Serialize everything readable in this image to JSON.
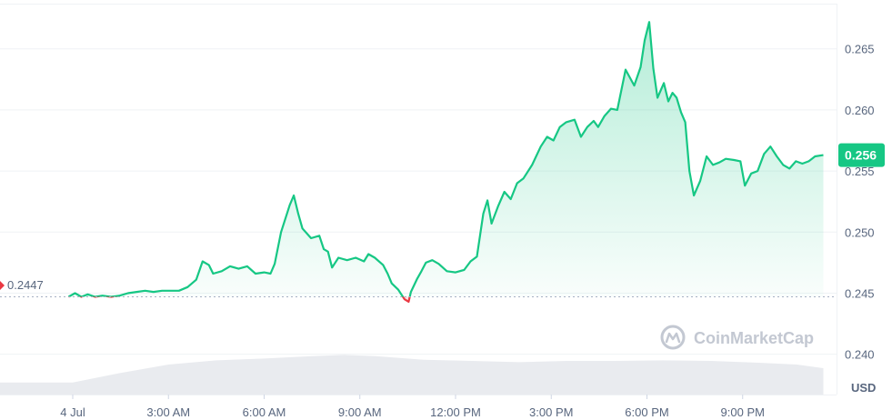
{
  "chart_data": {
    "type": "area",
    "currency_label": "USD",
    "watermark": "CoinMarketCap",
    "open_value_label": "0.2447",
    "current_value_label": "0.256",
    "open_value": 0.2447,
    "ylim": [
      0.2367,
      0.269
    ],
    "xlim": [
      0,
      24
    ],
    "yticks": [
      {
        "value": 0.265,
        "label": "0.265"
      },
      {
        "value": 0.26,
        "label": "0.260"
      },
      {
        "value": 0.255,
        "label": "0.255"
      },
      {
        "value": 0.25,
        "label": "0.250"
      },
      {
        "value": 0.245,
        "label": "0.245"
      },
      {
        "value": 0.24,
        "label": "0.240"
      }
    ],
    "xticks": [
      {
        "value": 0.0,
        "label": "4 Jul"
      },
      {
        "value": 3.0,
        "label": "3:00 AM"
      },
      {
        "value": 6.0,
        "label": "6:00 AM"
      },
      {
        "value": 9.0,
        "label": "9:00 AM"
      },
      {
        "value": 12.0,
        "label": "12:00 PM"
      },
      {
        "value": 15.0,
        "label": "3:00 PM"
      },
      {
        "value": 18.0,
        "label": "6:00 PM"
      },
      {
        "value": 21.0,
        "label": "9:00 PM"
      }
    ],
    "colors": {
      "up": "#16c784",
      "down": "#ea3943",
      "grid": "#eff2f5",
      "baseline": "#a6b0c3",
      "volume": "#e3e6eb"
    },
    "series": [
      {
        "values": [
          [
            -0.13,
            0.2447
          ],
          [
            0.07,
            0.245
          ],
          [
            0.27,
            0.2447
          ],
          [
            0.47,
            0.2449
          ],
          [
            0.7,
            0.2447
          ],
          [
            0.93,
            0.2448
          ],
          [
            1.2,
            0.2447
          ],
          [
            1.47,
            0.2448
          ],
          [
            1.73,
            0.245
          ],
          [
            2.0,
            0.2451
          ],
          [
            2.27,
            0.2452
          ],
          [
            2.53,
            0.2451
          ],
          [
            2.8,
            0.2452
          ],
          [
            3.07,
            0.2452
          ],
          [
            3.33,
            0.2452
          ],
          [
            3.6,
            0.2455
          ],
          [
            3.87,
            0.2461
          ],
          [
            4.07,
            0.2476
          ],
          [
            4.27,
            0.2473
          ],
          [
            4.4,
            0.2466
          ],
          [
            4.67,
            0.2468
          ],
          [
            4.93,
            0.2472
          ],
          [
            5.2,
            0.247
          ],
          [
            5.47,
            0.2472
          ],
          [
            5.73,
            0.2466
          ],
          [
            6.0,
            0.2467
          ],
          [
            6.2,
            0.2466
          ],
          [
            6.33,
            0.2474
          ],
          [
            6.53,
            0.25
          ],
          [
            6.8,
            0.2522
          ],
          [
            6.93,
            0.253
          ],
          [
            7.07,
            0.2515
          ],
          [
            7.2,
            0.2503
          ],
          [
            7.47,
            0.2495
          ],
          [
            7.73,
            0.2497
          ],
          [
            7.87,
            0.2486
          ],
          [
            8.0,
            0.2484
          ],
          [
            8.13,
            0.2471
          ],
          [
            8.33,
            0.2479
          ],
          [
            8.6,
            0.2477
          ],
          [
            8.87,
            0.2479
          ],
          [
            9.13,
            0.2476
          ],
          [
            9.27,
            0.2482
          ],
          [
            9.47,
            0.2479
          ],
          [
            9.73,
            0.2473
          ],
          [
            9.87,
            0.2466
          ],
          [
            10.0,
            0.2458
          ],
          [
            10.2,
            0.2453
          ],
          [
            10.4,
            0.2445
          ],
          [
            10.53,
            0.2443
          ],
          [
            10.6,
            0.2451
          ],
          [
            10.8,
            0.2462
          ],
          [
            10.93,
            0.2468
          ],
          [
            11.07,
            0.2475
          ],
          [
            11.27,
            0.2477
          ],
          [
            11.47,
            0.2474
          ],
          [
            11.73,
            0.2468
          ],
          [
            12.0,
            0.2467
          ],
          [
            12.27,
            0.2469
          ],
          [
            12.47,
            0.2476
          ],
          [
            12.67,
            0.248
          ],
          [
            12.87,
            0.2515
          ],
          [
            13.0,
            0.2526
          ],
          [
            13.13,
            0.2507
          ],
          [
            13.33,
            0.2521
          ],
          [
            13.53,
            0.2533
          ],
          [
            13.73,
            0.2527
          ],
          [
            13.93,
            0.254
          ],
          [
            14.13,
            0.2544
          ],
          [
            14.4,
            0.2555
          ],
          [
            14.67,
            0.257
          ],
          [
            14.87,
            0.2578
          ],
          [
            15.07,
            0.2575
          ],
          [
            15.27,
            0.2586
          ],
          [
            15.47,
            0.259
          ],
          [
            15.73,
            0.2592
          ],
          [
            15.93,
            0.2578
          ],
          [
            16.13,
            0.2586
          ],
          [
            16.33,
            0.2591
          ],
          [
            16.47,
            0.2586
          ],
          [
            16.67,
            0.2595
          ],
          [
            16.87,
            0.2601
          ],
          [
            17.07,
            0.26
          ],
          [
            17.33,
            0.2633
          ],
          [
            17.6,
            0.262
          ],
          [
            17.8,
            0.2635
          ],
          [
            17.93,
            0.2657
          ],
          [
            18.07,
            0.2672
          ],
          [
            18.2,
            0.2634
          ],
          [
            18.33,
            0.261
          ],
          [
            18.53,
            0.2622
          ],
          [
            18.67,
            0.2607
          ],
          [
            18.8,
            0.2614
          ],
          [
            18.93,
            0.261
          ],
          [
            19.07,
            0.2598
          ],
          [
            19.2,
            0.259
          ],
          [
            19.33,
            0.255
          ],
          [
            19.47,
            0.253
          ],
          [
            19.67,
            0.2542
          ],
          [
            19.87,
            0.2562
          ],
          [
            20.07,
            0.2555
          ],
          [
            20.27,
            0.2557
          ],
          [
            20.47,
            0.256
          ],
          [
            20.73,
            0.2559
          ],
          [
            20.93,
            0.2558
          ],
          [
            21.07,
            0.2538
          ],
          [
            21.27,
            0.2548
          ],
          [
            21.47,
            0.255
          ],
          [
            21.67,
            0.2564
          ],
          [
            21.87,
            0.257
          ],
          [
            22.07,
            0.2562
          ],
          [
            22.27,
            0.2555
          ],
          [
            22.47,
            0.2552
          ],
          [
            22.67,
            0.2558
          ],
          [
            22.87,
            0.2556
          ],
          [
            23.07,
            0.2558
          ],
          [
            23.27,
            0.2562
          ],
          [
            23.53,
            0.2563
          ]
        ]
      }
    ],
    "volume": {
      "ylim": [
        0,
        100
      ],
      "values": [
        [
          0.0,
          20
        ],
        [
          1.5,
          36
        ],
        [
          3.0,
          50
        ],
        [
          4.5,
          57
        ],
        [
          6.0,
          60
        ],
        [
          7.5,
          64
        ],
        [
          8.5,
          66
        ],
        [
          9.5,
          64
        ],
        [
          11.0,
          58
        ],
        [
          12.5,
          56
        ],
        [
          14.0,
          54
        ],
        [
          15.5,
          56
        ],
        [
          17.0,
          56
        ],
        [
          18.5,
          57
        ],
        [
          20.0,
          56
        ],
        [
          21.5,
          53
        ],
        [
          22.7,
          50
        ],
        [
          23.53,
          44
        ]
      ]
    }
  }
}
